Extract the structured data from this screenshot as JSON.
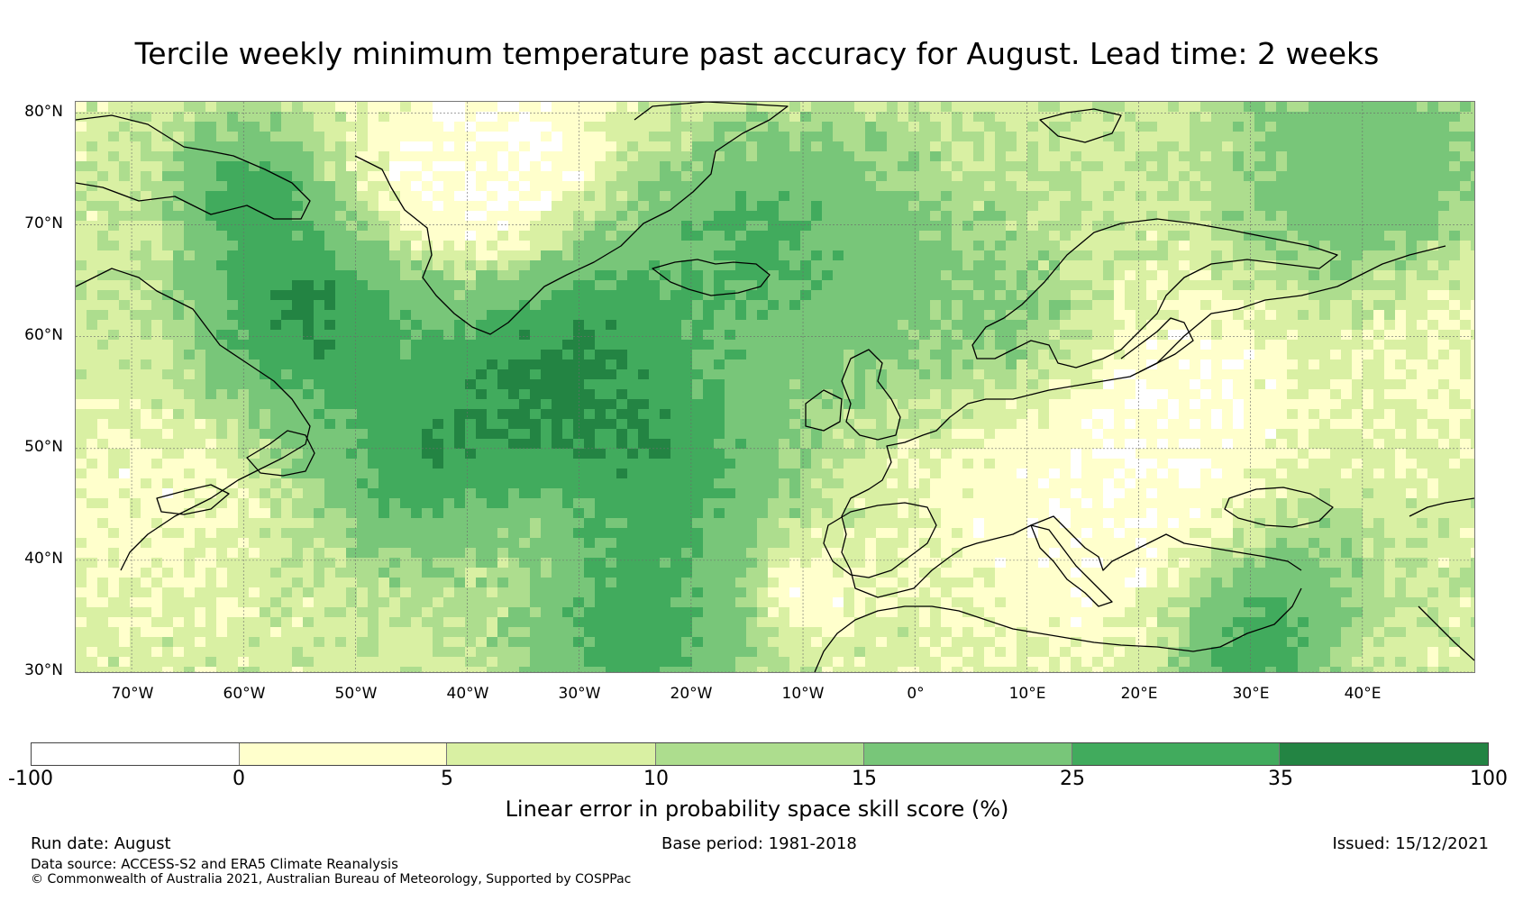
{
  "title": "Tercile weekly minimum temperature past accuracy for August. Lead time: 2 weeks",
  "map": {
    "lon_range": [
      -75,
      50
    ],
    "lat_range": [
      30,
      81
    ],
    "lat_ticks": [
      "30°N",
      "40°N",
      "50°N",
      "60°N",
      "70°N",
      "80°N"
    ],
    "lat_values": [
      30,
      40,
      50,
      60,
      70,
      80
    ],
    "lon_ticks": [
      "70°W",
      "60°W",
      "50°W",
      "40°W",
      "30°W",
      "20°W",
      "10°W",
      "0°",
      "10°E",
      "20°E",
      "30°E",
      "40°E"
    ],
    "lon_values": [
      -70,
      -60,
      -50,
      -40,
      -30,
      -20,
      -10,
      0,
      10,
      20,
      30,
      40
    ]
  },
  "colorbar": {
    "label": "Linear error in probability space skill score (%)",
    "ticks": [
      "-100",
      "0",
      "5",
      "10",
      "15",
      "25",
      "35",
      "100"
    ],
    "colors": [
      "#ffffff",
      "#ffffcc",
      "#d9f0a3",
      "#addd8e",
      "#78c679",
      "#41ab5d",
      "#238443"
    ]
  },
  "footer": {
    "run_date": "Run date: August",
    "base_period": "Base period: 1981-2018",
    "issued": "Issued: 15/12/2021",
    "data_source": "Data source: ACCESS-S2 and ERA5 Climate Reanalysis",
    "copyright": "© Commonwealth of Australia 2021, Australian Bureau of Meteorology, Supported by COSPPac"
  }
}
